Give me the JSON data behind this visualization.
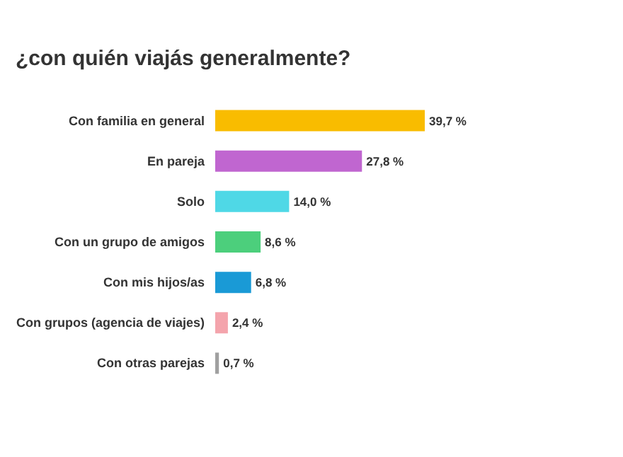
{
  "chart_data": {
    "type": "bar",
    "orientation": "horizontal",
    "title": "¿con quién viajás generalmente?",
    "categories": [
      "Con familia en general",
      "En pareja",
      "Solo",
      "Con un grupo de amigos",
      "Con mis hijos/as",
      "Con grupos (agencia de viajes)",
      "Con otras parejas"
    ],
    "values": [
      39.7,
      27.8,
      14.0,
      8.6,
      6.8,
      2.4,
      0.7
    ],
    "value_labels": [
      "39,7 %",
      "27,8 %",
      "14,0 %",
      "8,6 %",
      "6,8 %",
      "2,4 %",
      "0,7 %"
    ],
    "colors": [
      "#f9bc00",
      "#c066d0",
      "#4fd8e6",
      "#4ccf7c",
      "#1a9ad6",
      "#f4a4ac",
      "#a0a0a0"
    ]
  }
}
